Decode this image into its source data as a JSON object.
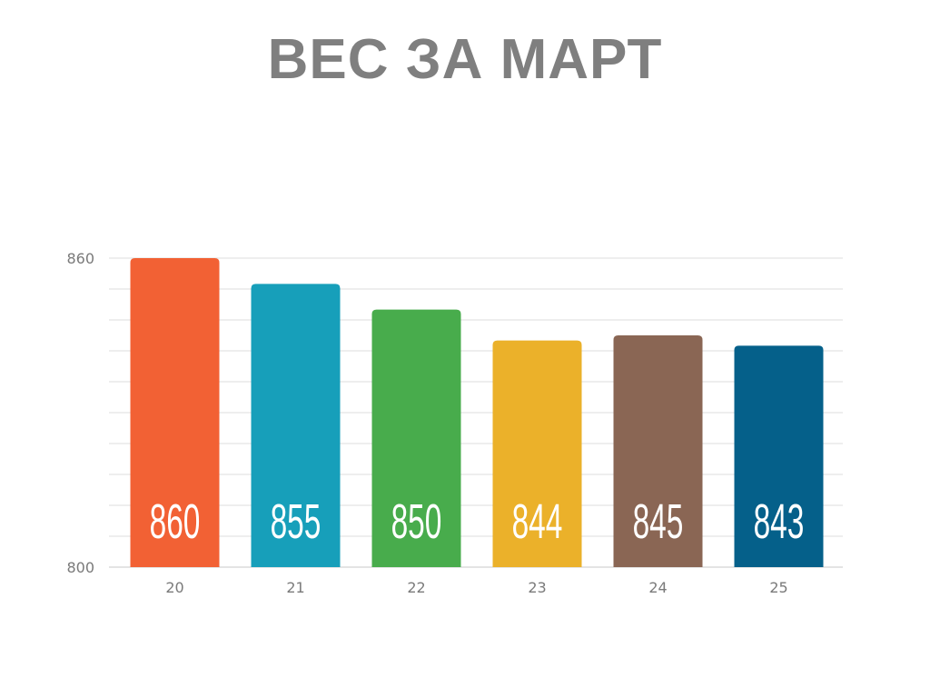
{
  "title": "ВЕС ЗА МАРТ",
  "chart_data": {
    "type": "bar",
    "title": "ВЕС ЗА МАРТ",
    "xlabel": "",
    "ylabel": "",
    "categories": [
      "20",
      "21",
      "22",
      "23",
      "24",
      "25"
    ],
    "values": [
      860,
      855,
      850,
      844,
      845,
      843
    ],
    "ylim": [
      800,
      860
    ],
    "y_tick_labels": [
      "800",
      "860"
    ],
    "grid": true,
    "legend": "none",
    "show_value_labels": true,
    "colors": [
      "#f26134",
      "#179fba",
      "#48ac4c",
      "#ebb12a",
      "#8a6654",
      "#05608a"
    ],
    "grid_color": "#dcdcdc",
    "title_color": "#7f7f7f"
  }
}
